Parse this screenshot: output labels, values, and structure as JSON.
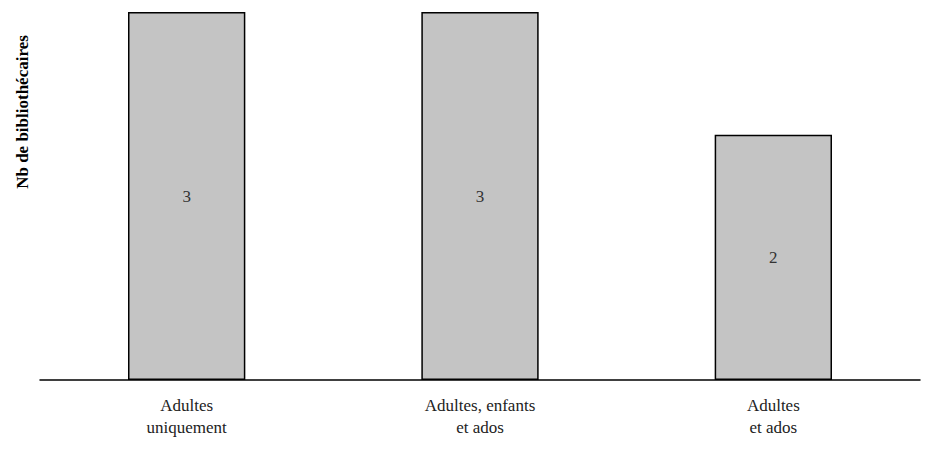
{
  "chart_data": {
    "type": "bar",
    "y_label": "Nb de bibliothécaires",
    "categories": [
      "Adultes\nuniquement",
      "Adultes, enfants\net ados",
      "Adultes\net ados"
    ],
    "values": [
      3,
      3,
      2
    ],
    "color": "#c4c4c4",
    "ylim": [
      0,
      3
    ],
    "grid": false,
    "data_labels": true,
    "tick_labels": "x"
  }
}
